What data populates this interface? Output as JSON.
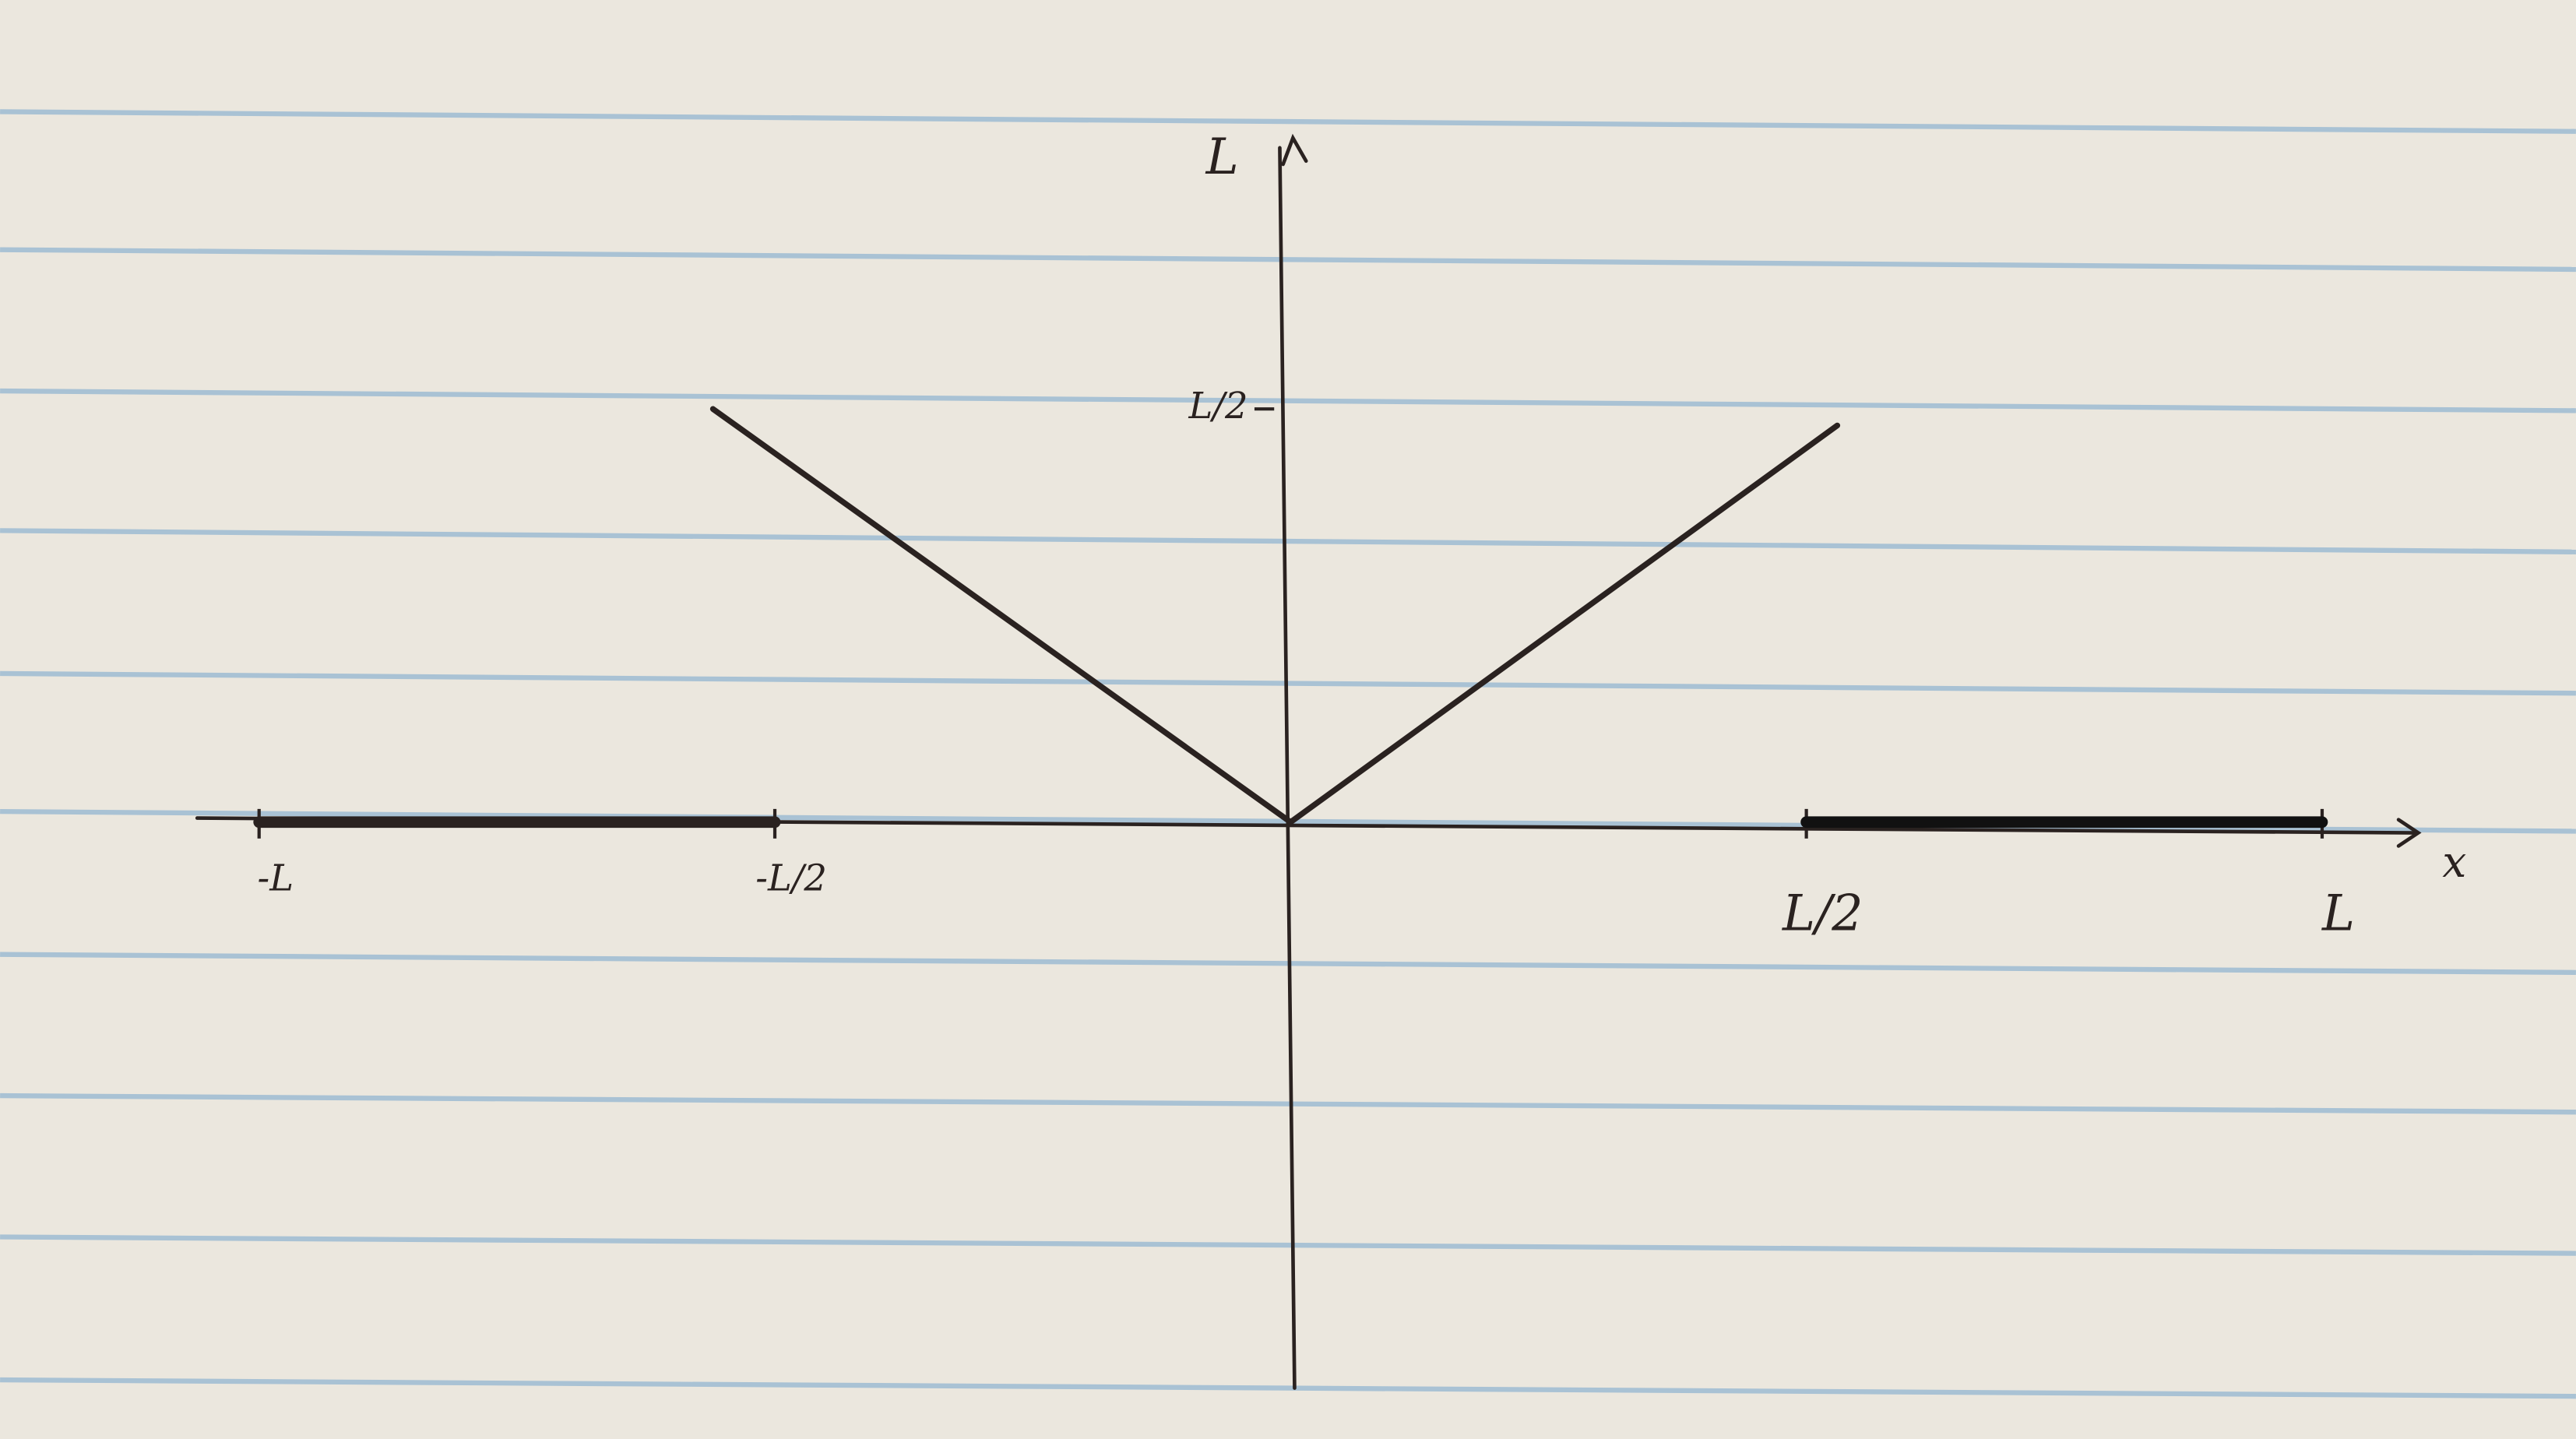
{
  "chart_data": {
    "type": "line",
    "xlabel": "x",
    "ylabel": "L",
    "xlim": [
      -1.06,
      1.09
    ],
    "ylim": [
      -0.685,
      0.82
    ],
    "xticks": [
      {
        "value": -1,
        "label": "-L"
      },
      {
        "value": -0.5,
        "label": "-L/2"
      },
      {
        "value": 0.5,
        "label": "L/2"
      },
      {
        "value": 1,
        "label": "L"
      }
    ],
    "yticks": [
      {
        "value": 0.5,
        "label": "L/2"
      }
    ],
    "series": [
      {
        "color": "#2a2220",
        "x": [
          -0.56,
          0,
          0.53
        ],
        "values": [
          0.5,
          0,
          0.48
        ]
      },
      {
        "color": "#2a2220",
        "x": [
          -1,
          -0.5
        ],
        "values": [
          0,
          0
        ]
      },
      {
        "color": "#111111",
        "x": [
          0.5,
          1
        ],
        "values": [
          0,
          0
        ]
      }
    ]
  }
}
